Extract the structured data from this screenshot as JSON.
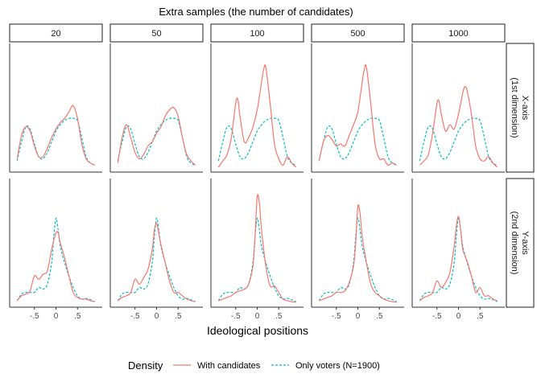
{
  "chart_data": {
    "type": "line",
    "title": "Extra samples (the number of candidates)",
    "xlabel": "Ideological positions",
    "x_ticks": [
      -0.5,
      0,
      0.5
    ],
    "x_tick_labels": [
      "-.5",
      "0",
      ".5"
    ],
    "xlim": [
      -1.0,
      1.0
    ],
    "column_labels": [
      "20",
      "50",
      "100",
      "500",
      "1000"
    ],
    "row_labels": [
      {
        "line1": "X-axis",
        "line2": "(1st dimension)"
      },
      {
        "line1": "Y-axis",
        "line2": "(2nd dimension)"
      }
    ],
    "legend": {
      "title": "Density",
      "position": "bottom",
      "entries": [
        {
          "label": "With candidates",
          "color": "#F8766D",
          "style": "solid"
        },
        {
          "label": "Only voters (N=1900)",
          "color": "#00BFC4",
          "style": "dashed"
        }
      ]
    },
    "ylim_rows": [
      [
        0,
        2.8
      ],
      [
        0,
        3.6
      ]
    ],
    "voters_series": [
      {
        "x": [
          -0.9,
          -0.8,
          -0.7,
          -0.6,
          -0.5,
          -0.4,
          -0.3,
          -0.2,
          -0.1,
          0.0,
          0.1,
          0.2,
          0.3,
          0.4,
          0.5,
          0.6,
          0.7,
          0.8,
          0.9
        ],
        "y": [
          0.15,
          0.6,
          0.95,
          0.9,
          0.55,
          0.25,
          0.2,
          0.35,
          0.6,
          0.85,
          1.0,
          1.1,
          1.15,
          1.15,
          1.1,
          0.7,
          0.25,
          0.1,
          0.05
        ]
      },
      {
        "x": [
          -0.9,
          -0.8,
          -0.7,
          -0.6,
          -0.5,
          -0.4,
          -0.3,
          -0.2,
          -0.1,
          -0.05,
          0.0,
          0.05,
          0.1,
          0.2,
          0.3,
          0.4,
          0.5,
          0.6,
          0.7,
          0.8,
          0.9
        ],
        "y": [
          0.05,
          0.25,
          0.3,
          0.3,
          0.3,
          0.45,
          0.4,
          0.55,
          1.2,
          2.0,
          2.55,
          2.2,
          1.7,
          1.2,
          0.8,
          0.45,
          0.2,
          0.1,
          0.12,
          0.08,
          0.02
        ]
      }
    ],
    "panels": [
      {
        "row": 0,
        "col": 0,
        "column": "20",
        "x": [
          -0.9,
          -0.8,
          -0.7,
          -0.6,
          -0.5,
          -0.4,
          -0.3,
          -0.2,
          -0.1,
          0.0,
          0.1,
          0.2,
          0.3,
          0.4,
          0.5,
          0.6,
          0.7,
          0.8,
          0.9
        ],
        "y": [
          0.2,
          0.75,
          0.95,
          0.85,
          0.5,
          0.25,
          0.25,
          0.45,
          0.7,
          0.9,
          1.05,
          1.15,
          1.3,
          1.45,
          1.15,
          0.55,
          0.2,
          0.1,
          0.05
        ]
      },
      {
        "row": 0,
        "col": 1,
        "column": "50",
        "x": [
          -0.9,
          -0.8,
          -0.7,
          -0.6,
          -0.5,
          -0.4,
          -0.3,
          -0.2,
          -0.1,
          0.0,
          0.1,
          0.2,
          0.3,
          0.4,
          0.5,
          0.6,
          0.7,
          0.8,
          0.9
        ],
        "y": [
          0.1,
          0.7,
          1.0,
          0.7,
          0.35,
          0.2,
          0.3,
          0.5,
          0.6,
          0.8,
          0.95,
          1.2,
          1.35,
          1.4,
          1.2,
          0.7,
          0.3,
          0.15,
          0.05
        ]
      },
      {
        "row": 0,
        "col": 2,
        "column": "100",
        "x": [
          -0.9,
          -0.8,
          -0.7,
          -0.6,
          -0.5,
          -0.45,
          -0.4,
          -0.3,
          -0.2,
          -0.1,
          0.0,
          0.1,
          0.15,
          0.2,
          0.3,
          0.4,
          0.5,
          0.6,
          0.7,
          0.8,
          0.9
        ],
        "y": [
          0.0,
          0.15,
          0.3,
          0.7,
          1.5,
          1.6,
          1.2,
          0.6,
          0.7,
          0.95,
          1.35,
          2.0,
          2.3,
          2.35,
          1.5,
          0.55,
          0.2,
          0.05,
          0.25,
          0.1,
          0.0
        ]
      },
      {
        "row": 0,
        "col": 3,
        "column": "500",
        "x": [
          -0.9,
          -0.8,
          -0.7,
          -0.6,
          -0.5,
          -0.4,
          -0.3,
          -0.2,
          -0.1,
          0.0,
          0.1,
          0.15,
          0.2,
          0.3,
          0.4,
          0.5,
          0.6,
          0.7,
          0.8,
          0.9
        ],
        "y": [
          0.15,
          0.6,
          0.75,
          0.65,
          0.5,
          0.55,
          0.5,
          0.75,
          1.0,
          1.3,
          2.0,
          2.3,
          2.35,
          1.5,
          0.55,
          0.2,
          0.2,
          0.05,
          0.1,
          0.05
        ]
      },
      {
        "row": 0,
        "col": 4,
        "column": "1000",
        "x": [
          -0.9,
          -0.8,
          -0.7,
          -0.6,
          -0.5,
          -0.45,
          -0.4,
          -0.3,
          -0.2,
          -0.1,
          0.0,
          0.1,
          0.15,
          0.2,
          0.3,
          0.4,
          0.5,
          0.6,
          0.7,
          0.8,
          0.9
        ],
        "y": [
          0.05,
          0.15,
          0.3,
          0.8,
          1.5,
          1.55,
          1.25,
          0.85,
          1.0,
          0.9,
          1.25,
          1.75,
          1.9,
          1.8,
          1.25,
          0.5,
          0.2,
          0.15,
          0.25,
          0.1,
          0.0
        ]
      },
      {
        "row": 1,
        "col": 0,
        "column": "20",
        "x": [
          -0.9,
          -0.8,
          -0.7,
          -0.6,
          -0.5,
          -0.4,
          -0.3,
          -0.2,
          -0.1,
          0.0,
          0.05,
          0.1,
          0.2,
          0.3,
          0.4,
          0.5,
          0.6,
          0.7,
          0.8,
          0.9
        ],
        "y": [
          0.05,
          0.2,
          0.25,
          0.35,
          0.8,
          0.7,
          0.85,
          0.95,
          1.6,
          2.1,
          2.1,
          1.8,
          1.35,
          0.8,
          0.3,
          0.15,
          0.1,
          0.1,
          0.05,
          0.02
        ]
      },
      {
        "row": 1,
        "col": 1,
        "column": "50",
        "x": [
          -0.9,
          -0.8,
          -0.7,
          -0.6,
          -0.5,
          -0.4,
          -0.3,
          -0.2,
          -0.1,
          -0.05,
          0.0,
          0.05,
          0.1,
          0.2,
          0.3,
          0.4,
          0.5,
          0.6,
          0.7,
          0.8,
          0.9
        ],
        "y": [
          0.05,
          0.15,
          0.2,
          0.3,
          0.7,
          0.55,
          0.75,
          1.0,
          1.6,
          2.2,
          2.4,
          2.1,
          1.75,
          1.2,
          0.65,
          0.3,
          0.3,
          0.2,
          0.1,
          0.05,
          0.02
        ]
      },
      {
        "row": 1,
        "col": 2,
        "column": "100",
        "x": [
          -0.9,
          -0.8,
          -0.7,
          -0.6,
          -0.5,
          -0.4,
          -0.3,
          -0.2,
          -0.1,
          -0.05,
          0.0,
          0.05,
          0.1,
          0.2,
          0.3,
          0.4,
          0.5,
          0.6,
          0.7,
          0.8,
          0.9
        ],
        "y": [
          0.05,
          0.1,
          0.15,
          0.2,
          0.3,
          0.35,
          0.4,
          0.55,
          1.1,
          2.0,
          3.2,
          3.0,
          2.2,
          1.1,
          0.5,
          0.5,
          0.3,
          0.1,
          0.05,
          0.02,
          0.0
        ]
      },
      {
        "row": 1,
        "col": 3,
        "column": "500",
        "x": [
          -0.9,
          -0.8,
          -0.7,
          -0.6,
          -0.5,
          -0.4,
          -0.3,
          -0.2,
          -0.1,
          -0.05,
          0.0,
          0.05,
          0.1,
          0.2,
          0.3,
          0.4,
          0.5,
          0.6,
          0.7,
          0.8,
          0.9
        ],
        "y": [
          0.05,
          0.1,
          0.15,
          0.2,
          0.3,
          0.3,
          0.35,
          0.6,
          1.1,
          1.8,
          2.9,
          2.7,
          2.0,
          1.2,
          0.55,
          0.3,
          0.2,
          0.1,
          0.05,
          0.02,
          0.0
        ]
      },
      {
        "row": 1,
        "col": 4,
        "column": "1000",
        "x": [
          -0.9,
          -0.8,
          -0.7,
          -0.6,
          -0.5,
          -0.4,
          -0.3,
          -0.2,
          -0.1,
          -0.05,
          0.0,
          0.05,
          0.1,
          0.2,
          0.3,
          0.4,
          0.5,
          0.6,
          0.7,
          0.8,
          0.9
        ],
        "y": [
          0.05,
          0.15,
          0.2,
          0.3,
          0.65,
          0.45,
          0.6,
          0.9,
          1.7,
          2.3,
          2.6,
          2.2,
          1.6,
          1.25,
          0.8,
          0.3,
          0.45,
          0.2,
          0.2,
          0.1,
          0.05
        ]
      }
    ]
  }
}
